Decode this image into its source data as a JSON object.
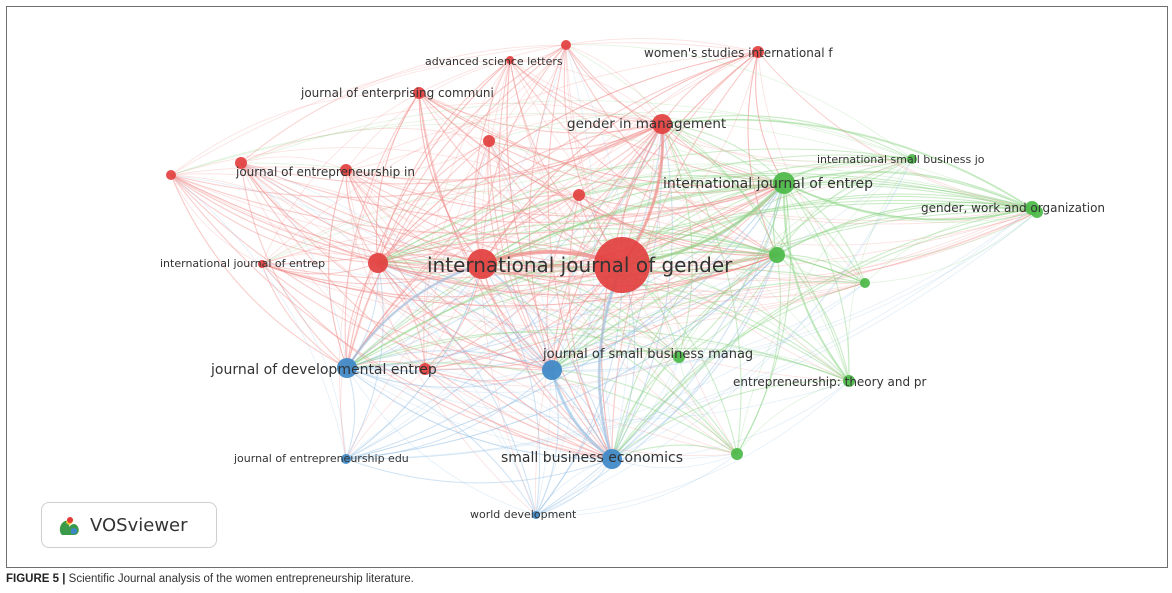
{
  "logo": {
    "text": "VOSviewer"
  },
  "caption": {
    "label": "FIGURE 5 |",
    "text": "Scientific Journal analysis of the women entrepreneurship literature."
  },
  "colors": {
    "red": "#e2403f",
    "green": "#4cb848",
    "blue": "#3d88c7",
    "edge_red": "#ef8f8c",
    "edge_green": "#8fd588",
    "edge_blue": "#9bc4e6"
  },
  "nodes": [
    {
      "id": "ijg",
      "label": "international journal of gender",
      "cluster": "red"
    },
    {
      "id": "gim",
      "label": "gender in management",
      "cluster": "red"
    },
    {
      "id": "wsi",
      "label": "women's studies international f",
      "cluster": "red"
    },
    {
      "id": "asl",
      "label": "advanced science letters",
      "cluster": "red"
    },
    {
      "id": "jec",
      "label": "journal of enterprising communi",
      "cluster": "red"
    },
    {
      "id": "jei",
      "label": "journal of entrepreneurship in",
      "cluster": "red"
    },
    {
      "id": "ijer",
      "label": "international journal of entrep",
      "cluster": "red"
    },
    {
      "id": "jde",
      "label": "journal of developmental entrep",
      "cluster": "blue"
    },
    {
      "id": "jsbm",
      "label": "journal of small business manag",
      "cluster": "blue"
    },
    {
      "id": "sbe",
      "label": "small business economics",
      "cluster": "blue"
    },
    {
      "id": "jee",
      "label": "journal of entrepreneurship edu",
      "cluster": "blue"
    },
    {
      "id": "wd",
      "label": "world development",
      "cluster": "blue"
    },
    {
      "id": "ijeg",
      "label": "international journal of entrep",
      "cluster": "green"
    },
    {
      "id": "isbj",
      "label": "international small business jo",
      "cluster": "green"
    },
    {
      "id": "gwo",
      "label": "gender, work and organization",
      "cluster": "green"
    },
    {
      "id": "etp",
      "label": "entrepreneurship: theory and pr",
      "cluster": "green"
    }
  ]
}
